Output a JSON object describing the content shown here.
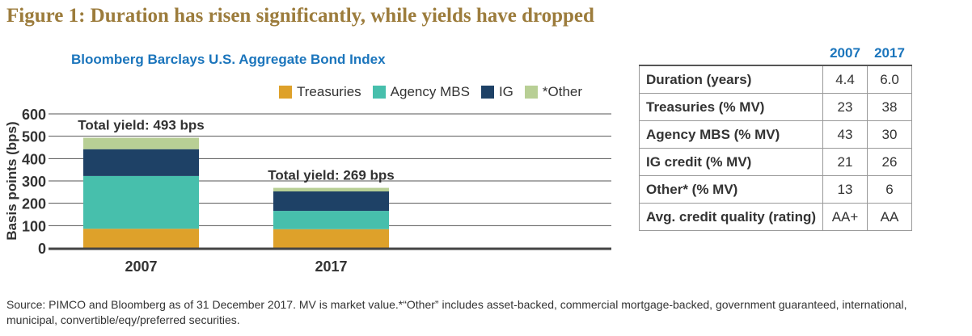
{
  "title": "Figure 1: Duration has risen significantly, while yields have dropped",
  "chart_data": {
    "type": "bar",
    "stacked": true,
    "title": "Bloomberg Barclays U.S. Aggregate Bond Index",
    "xlabel": "",
    "ylabel": "Basis points (bps)",
    "ylim": [
      0,
      600
    ],
    "yticks": [
      0,
      100,
      200,
      300,
      400,
      500,
      600
    ],
    "grid": true,
    "legend_position": "top",
    "categories": [
      "2007",
      "2017"
    ],
    "series": [
      {
        "name": "Treasuries",
        "color": "#dea12a",
        "values": [
          86,
          84
        ]
      },
      {
        "name": "Agency MBS",
        "color": "#47bfac",
        "values": [
          236,
          82
        ]
      },
      {
        "name": "IG",
        "color": "#1e4166",
        "values": [
          120,
          87
        ]
      },
      {
        "name": "*Other",
        "color": "#b8cf95",
        "values": [
          51,
          16
        ]
      }
    ],
    "annotations": [
      "Total yield: 493 bps",
      "Total yield: 269 bps"
    ]
  },
  "table": {
    "headers": [
      "",
      "2007",
      "2017"
    ],
    "rows": [
      [
        "Duration (years)",
        "4.4",
        "6.0"
      ],
      [
        "Treasuries (% MV)",
        "23",
        "38"
      ],
      [
        "Agency MBS (% MV)",
        "43",
        "30"
      ],
      [
        "IG credit (% MV)",
        "21",
        "26"
      ],
      [
        "Other* (% MV)",
        "13",
        "6"
      ],
      [
        "Avg. credit quality (rating)",
        "AA+",
        "AA"
      ]
    ]
  },
  "source": "Source: PIMCO and Bloomberg as of 31 December 2017. MV is market value.*“Other” includes asset-backed, commercial mortgage-backed, government guaranteed, international, municipal, convertible/eqy/preferred securities."
}
